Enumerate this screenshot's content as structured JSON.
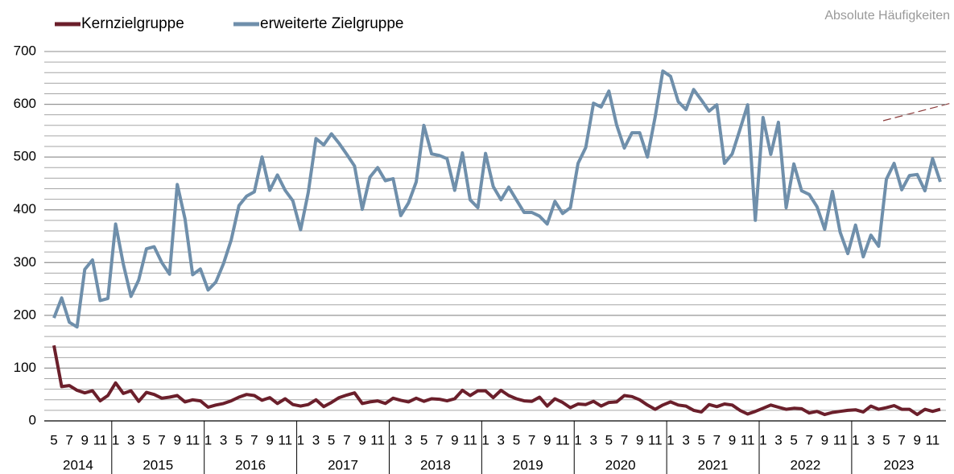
{
  "chart_data": {
    "type": "line",
    "annotation": "Absolute Häufigkeiten",
    "categories": [
      "5",
      null,
      "7",
      null,
      "9",
      null,
      "11",
      null,
      "1",
      null,
      "3",
      null,
      "5",
      null,
      "7",
      null,
      "9",
      null,
      "11",
      null,
      "1",
      null,
      "3",
      null,
      "5",
      null,
      "7",
      null,
      "9",
      null,
      "11",
      null,
      "1",
      null,
      "3",
      null,
      "5",
      null,
      "7",
      null,
      "9",
      null,
      "11",
      null,
      "1",
      null,
      "3",
      null,
      "5",
      null,
      "7",
      null,
      "9",
      null,
      "11",
      null,
      "1",
      null,
      "3",
      null,
      "5",
      null,
      "7",
      null,
      "9",
      null,
      "11",
      null,
      "1",
      null,
      "3",
      null,
      "5",
      null,
      "7",
      null,
      "9",
      null,
      "11",
      null,
      "1",
      null,
      "3",
      null,
      "5",
      null,
      "7",
      null,
      "9",
      null,
      "11",
      null,
      "1",
      null,
      "3",
      null,
      "5",
      null,
      "7",
      null,
      "9",
      null,
      "11",
      null,
      "1",
      null,
      "3",
      null,
      "5",
      null,
      "7",
      null,
      "9",
      null,
      "11",
      null
    ],
    "years": [
      "2014",
      "2015",
      "2016",
      "2017",
      "2018",
      "2019",
      "2020",
      "2021",
      "2022",
      "2023"
    ],
    "series": [
      {
        "name": "Kernzielgruppe",
        "color": "#6b1f2b",
        "values": [
          143,
          65,
          67,
          58,
          53,
          57,
          38,
          48,
          72,
          52,
          57,
          37,
          54,
          50,
          43,
          45,
          48,
          36,
          40,
          38,
          26,
          30,
          33,
          38,
          45,
          50,
          48,
          39,
          44,
          33,
          42,
          31,
          28,
          31,
          40,
          27,
          35,
          44,
          49,
          53,
          33,
          36,
          38,
          33,
          43,
          39,
          36,
          43,
          37,
          42,
          41,
          38,
          42,
          58,
          48,
          57,
          57,
          44,
          58,
          48,
          42,
          38,
          37,
          45,
          28,
          42,
          35,
          25,
          32,
          31,
          37,
          28,
          35,
          36,
          48,
          46,
          40,
          30,
          22,
          30,
          36,
          30,
          28,
          20,
          17,
          31,
          27,
          32,
          30,
          20,
          13,
          18,
          24,
          30,
          26,
          22,
          24,
          23,
          15,
          18,
          12,
          16,
          18,
          20,
          21,
          17,
          28,
          22,
          25,
          29,
          22,
          22,
          12,
          22,
          18,
          22
        ]
      },
      {
        "name": "erweiterte Zielgruppe",
        "color": "#6f8fab",
        "values": [
          195,
          233,
          187,
          178,
          287,
          305,
          228,
          232,
          373,
          297,
          236,
          267,
          326,
          330,
          300,
          278,
          448,
          383,
          277,
          288,
          248,
          263,
          298,
          343,
          408,
          426,
          434,
          500,
          437,
          466,
          437,
          417,
          362,
          433,
          535,
          523,
          544,
          526,
          505,
          483,
          401,
          462,
          480,
          455,
          459,
          389,
          413,
          453,
          560,
          506,
          503,
          497,
          437,
          508,
          419,
          404,
          507,
          444,
          419,
          443,
          419,
          395,
          395,
          388,
          373,
          416,
          393,
          404,
          488,
          518,
          602,
          595,
          625,
          561,
          517,
          546,
          546,
          500,
          576,
          663,
          653,
          605,
          590,
          628,
          608,
          587,
          599,
          488,
          506,
          552,
          599,
          380,
          575,
          505,
          566,
          404,
          487,
          436,
          429,
          406,
          363,
          435,
          358,
          317,
          371,
          311,
          352,
          331,
          458,
          488,
          438,
          465,
          467,
          436,
          497,
          453
        ]
      }
    ],
    "ylim": [
      0,
      700
    ],
    "yticks": [
      0,
      100,
      200,
      300,
      400,
      500,
      600,
      700
    ],
    "minor_yticks": [
      0,
      20,
      40,
      60,
      80,
      100,
      120,
      140,
      160,
      180,
      200,
      220,
      240,
      260,
      280,
      300,
      320,
      340,
      360,
      380,
      400,
      420,
      440,
      460,
      480,
      500,
      520,
      540,
      560,
      580,
      600,
      620,
      640,
      660,
      680,
      700
    ],
    "grid": true
  }
}
